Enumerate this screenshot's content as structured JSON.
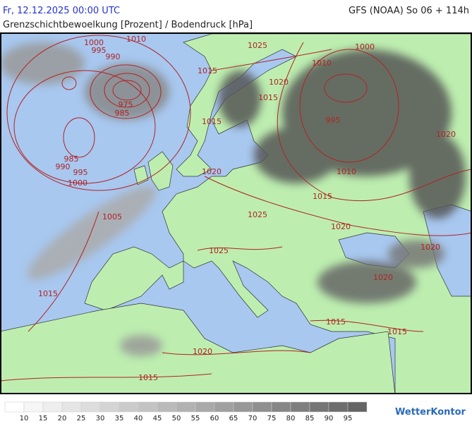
{
  "header": {
    "date": "Fr, 12.12.2025 00:00 UTC",
    "model": "GFS (NOAA) So 06 + 114h",
    "title": "Grenzschichtbewoelkung [Prozent] / Bodendruck [hPa]"
  },
  "isobar_labels": [
    1010,
    1000,
    995,
    990,
    975,
    985,
    985,
    990,
    995,
    1000,
    1025,
    1015,
    1020,
    1015,
    1015,
    1010,
    1000,
    995,
    1020,
    1010,
    1020,
    1015,
    1005,
    1025,
    1020,
    1025,
    1020,
    1020,
    1015,
    1015,
    1015,
    1020,
    1015
  ],
  "legend": {
    "labels": [
      10,
      15,
      20,
      25,
      30,
      35,
      40,
      45,
      50,
      55,
      60,
      65,
      70,
      75,
      80,
      85,
      90,
      95
    ]
  },
  "logo": "WetterKontor"
}
